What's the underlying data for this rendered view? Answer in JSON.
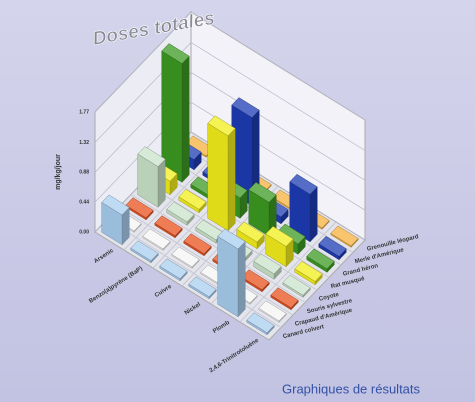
{
  "chart_data": {
    "type": "bar3d",
    "title": "Doses totales",
    "ylabel": "mg/kg/jour",
    "categories": [
      "Arsenic",
      "Benzo(a)pyrène (BaP)",
      "Cuivre",
      "Nickel",
      "Plomb",
      "2,4,6-Trinitrotoluène"
    ],
    "series": [
      {
        "name": "Canard colvert",
        "color": "#a9cdef",
        "values": [
          0.44,
          0.03,
          0.03,
          0.03,
          1.0,
          0.03
        ]
      },
      {
        "name": "Crapaud d'Amérique",
        "color": "#f4f4f4",
        "values": [
          0.02,
          0.02,
          0.02,
          0.02,
          0.02,
          0.02
        ]
      },
      {
        "name": "Souris sylvestre",
        "color": "#e8521e",
        "values": [
          0.03,
          0.03,
          0.03,
          0.03,
          0.03,
          0.03
        ]
      },
      {
        "name": "Coyote",
        "color": "#c9e2c9",
        "values": [
          0.6,
          0.05,
          0.05,
          0.05,
          0.08,
          0.03
        ]
      },
      {
        "name": "Rat musqué",
        "color": "#f2ee1a",
        "values": [
          0.2,
          0.05,
          1.4,
          0.1,
          0.3,
          0.05
        ]
      },
      {
        "name": "Grand héron",
        "color": "#3c9a22",
        "values": [
          1.75,
          0.05,
          0.3,
          0.5,
          0.15,
          0.05
        ]
      },
      {
        "name": "Merle d'Amérique",
        "color": "#1d3cb4",
        "values": [
          0.15,
          0.05,
          1.3,
          0.1,
          0.7,
          0.05
        ]
      },
      {
        "name": "Grenouille léopard",
        "color": "#f6b23e",
        "values": [
          0.02,
          0.02,
          0.02,
          0.02,
          0.02,
          0.02
        ]
      }
    ],
    "ylim": [
      0,
      1.77
    ],
    "yticks": [
      {
        "value": 0,
        "label": "0.00"
      },
      0.44,
      0.88,
      1.32,
      1.77
    ],
    "grid": true
  },
  "caption": "Graphiques de résultats"
}
